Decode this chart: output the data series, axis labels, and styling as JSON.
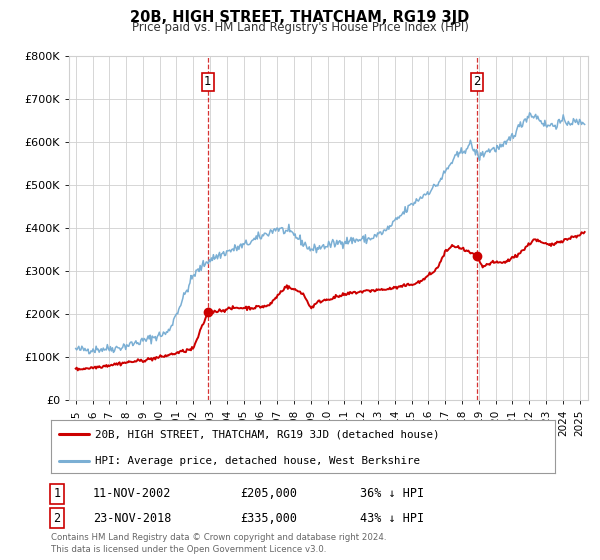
{
  "title": "20B, HIGH STREET, THATCHAM, RG19 3JD",
  "subtitle": "Price paid vs. HM Land Registry's House Price Index (HPI)",
  "ylim": [
    0,
    800000
  ],
  "yticks": [
    0,
    100000,
    200000,
    300000,
    400000,
    500000,
    600000,
    700000,
    800000
  ],
  "ytick_labels": [
    "£0",
    "£100K",
    "£200K",
    "£300K",
    "£400K",
    "£500K",
    "£600K",
    "£700K",
    "£800K"
  ],
  "xlim_start": 1994.6,
  "xlim_end": 2025.5,
  "xticks": [
    1995,
    1996,
    1997,
    1998,
    1999,
    2000,
    2001,
    2002,
    2003,
    2004,
    2005,
    2006,
    2007,
    2008,
    2009,
    2010,
    2011,
    2012,
    2013,
    2014,
    2015,
    2016,
    2017,
    2018,
    2019,
    2020,
    2021,
    2022,
    2023,
    2024,
    2025
  ],
  "background_color": "#ffffff",
  "plot_background": "#ffffff",
  "grid_color": "#d0d0d0",
  "red_line_color": "#cc0000",
  "blue_line_color": "#7bafd4",
  "marker1_date": 2002.87,
  "marker1_value": 205000,
  "marker2_date": 2018.9,
  "marker2_value": 335000,
  "vline1_x": 2002.87,
  "vline2_x": 2018.9,
  "legend_line1": "20B, HIGH STREET, THATCHAM, RG19 3JD (detached house)",
  "legend_line2": "HPI: Average price, detached house, West Berkshire",
  "annotation1_num": "1",
  "annotation1_date": "11-NOV-2002",
  "annotation1_price": "£205,000",
  "annotation1_hpi": "36% ↓ HPI",
  "annotation2_num": "2",
  "annotation2_date": "23-NOV-2018",
  "annotation2_price": "£335,000",
  "annotation2_hpi": "43% ↓ HPI",
  "footer1": "Contains HM Land Registry data © Crown copyright and database right 2024.",
  "footer2": "This data is licensed under the Open Government Licence v3.0."
}
